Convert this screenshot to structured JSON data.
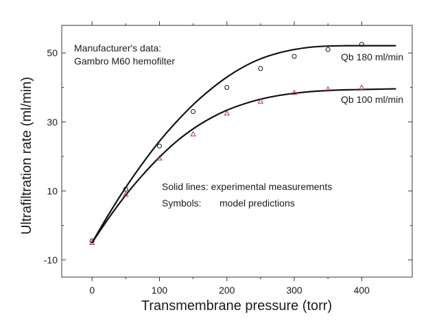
{
  "chart_data": {
    "type": "line",
    "title": "",
    "xlabel": "Transmembrane pressure (torr)",
    "ylabel": "Ultrafiltration rate (ml/min)",
    "xlim": [
      -45,
      475
    ],
    "ylim": [
      -15,
      58
    ],
    "xticks": [
      0,
      100,
      200,
      300,
      400
    ],
    "yticks": [
      -10,
      10,
      30,
      50
    ],
    "grid": false,
    "annotations": {
      "source_line1": "Manufacturer's data:",
      "source_line2": "Gambro M60 hemofilter",
      "note_line1": "Solid lines: experimental measurements",
      "note_line2_label": "Symbols:",
      "note_line2_value": "model predictions"
    },
    "series": [
      {
        "name": "Qb 180 ml/min",
        "kind": "line",
        "color": "#111111",
        "x": [
          0,
          25,
          50,
          75,
          100,
          125,
          150,
          175,
          200,
          225,
          250,
          275,
          300,
          325,
          350,
          375,
          400,
          425,
          450
        ],
        "y": [
          -5.0,
          3.3,
          11.0,
          18.0,
          24.4,
          30.0,
          35.0,
          39.3,
          43.0,
          46.0,
          48.3,
          49.9,
          51.0,
          51.7,
          52.0,
          52.1,
          52.1,
          52.1,
          52.1
        ]
      },
      {
        "name": "Qb 100 ml/min",
        "kind": "line",
        "color": "#111111",
        "x": [
          0,
          25,
          50,
          75,
          100,
          125,
          150,
          175,
          200,
          225,
          250,
          275,
          300,
          325,
          350,
          375,
          400,
          425,
          450
        ],
        "y": [
          -5.0,
          2.2,
          8.8,
          14.6,
          19.8,
          24.3,
          28.0,
          31.0,
          33.4,
          35.2,
          36.6,
          37.6,
          38.3,
          38.8,
          39.1,
          39.3,
          39.4,
          39.5,
          39.6
        ]
      },
      {
        "name": "Model prediction (Qb 180)",
        "kind": "scatter",
        "marker": "circle",
        "color": "#111111",
        "x": [
          0,
          50,
          100,
          150,
          200,
          250,
          300,
          350,
          400
        ],
        "y": [
          -4.5,
          10.5,
          23.0,
          33.0,
          40.0,
          45.5,
          49.0,
          51.0,
          52.5
        ]
      },
      {
        "name": "Model prediction (Qb 100)",
        "kind": "scatter",
        "marker": "triangle",
        "color": "#b0304a",
        "x": [
          0,
          50,
          100,
          150,
          200,
          250,
          300,
          350,
          400
        ],
        "y": [
          -5.0,
          9.0,
          19.5,
          26.5,
          32.5,
          36.0,
          38.5,
          39.5,
          40.0
        ]
      }
    ],
    "line_labels": {
      "qb180": "Qb 180 ml/min",
      "qb100": "Qb 100 ml/min"
    }
  }
}
